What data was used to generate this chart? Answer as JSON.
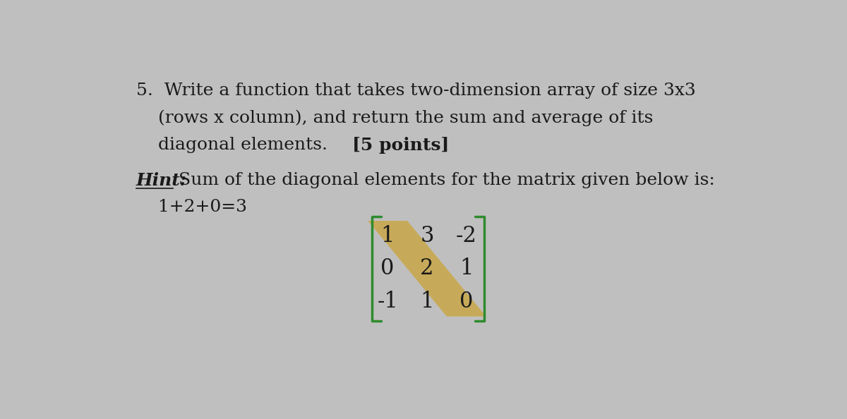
{
  "bg_color": "#c0bfbf",
  "text_color": "#1a1a1a",
  "line1": "5.  Write a function that takes two-dimension array of size 3x3",
  "line2": "(rows x column), and return the sum and average of its",
  "line3": "diagonal elements.",
  "points_text": "[5 points]",
  "hint_label": "Hint:",
  "hint_text": " Sum of the diagonal elements for the matrix given below is:",
  "hint_eq": "1+2+0=3",
  "matrix": [
    [
      1,
      3,
      -2
    ],
    [
      0,
      2,
      1
    ],
    [
      -1,
      1,
      0
    ]
  ],
  "diag_color": "#c8a84b",
  "bracket_color": "#2e8b2e",
  "matrix_text_color": "#1a1a1a",
  "font_size_main": 18,
  "font_size_matrix": 22
}
